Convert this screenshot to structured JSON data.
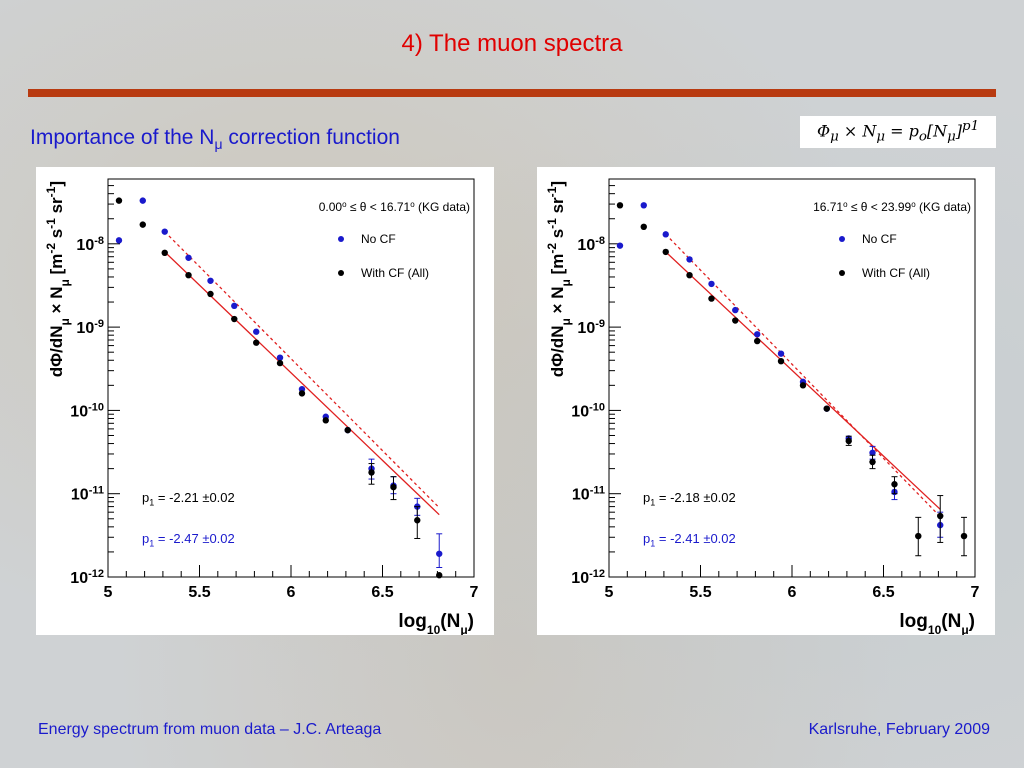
{
  "slide": {
    "title": "4) The muon spectra",
    "subtitle_pre": "Importance of the N",
    "subtitle_sub": "μ",
    "subtitle_post": " correction function",
    "formula_html": "Φ<sub>μ</sub> × N<sub>μ</sub> = p<sub>o</sub>[N<sub>μ</sub>]<sup>p1</sup>",
    "footer_left": "Energy spectrum from muon data – J.C. Arteaga",
    "footer_right": "Karlsruhe,  February 2009"
  },
  "colors": {
    "accent_red": "#e00000",
    "rule": "#b83a10",
    "text_blue": "#1a1acc",
    "no_cf": "#1a1acc",
    "with_cf": "#000000",
    "fit_line": "#e02020"
  },
  "chart_data": [
    {
      "type": "scatter",
      "yscale": "log",
      "xlim": [
        5,
        7
      ],
      "ylim": [
        1e-12,
        6e-08
      ],
      "xticks": [
        "5",
        "5.5",
        "6",
        "6.5",
        "7"
      ],
      "ytick_base": "10",
      "ytick_exps": [
        "-8",
        "-9",
        "-10",
        "-11",
        "-12"
      ],
      "xlabel_main": "log",
      "xlabel_sub": "10",
      "xlabel_arg": "(N",
      "xlabel_argsub": "μ",
      "xlabel_end": ")",
      "ylabel_html": "dΦ/dN<tspan baseline-shift='sub' font-size='12'>μ</tspan> × N<tspan baseline-shift='sub' font-size='12'>μ</tspan> [m<tspan baseline-shift='super' font-size='12'>-2</tspan> s<tspan baseline-shift='super' font-size='12'>-1</tspan> sr<tspan baseline-shift='super' font-size='12'>-1</tspan>]",
      "header_html": "0.00<tspan baseline-shift='super' font-size='8'>o</tspan> ≤ θ < 16.71<tspan baseline-shift='super' font-size='8'>o</tspan> (KG data)",
      "legend": [
        "No CF",
        "With CF (All)"
      ],
      "series": [
        {
          "name": "No CF",
          "points": [
            [
              5.06,
              1.1e-08
            ],
            [
              5.19,
              3.3e-08
            ],
            [
              5.31,
              1.4e-08
            ],
            [
              5.44,
              6.8e-09
            ],
            [
              5.56,
              3.6e-09
            ],
            [
              5.69,
              1.8e-09
            ],
            [
              5.81,
              8.8e-10
            ],
            [
              5.94,
              4.3e-10
            ],
            [
              6.06,
              1.8e-10
            ],
            [
              6.19,
              8.4e-11
            ],
            [
              6.31,
              5.8e-11
            ],
            [
              6.44,
              2e-11
            ],
            [
              6.56,
              1.25e-11
            ],
            [
              6.69,
              7e-12
            ],
            [
              6.81,
              1.9e-12
            ]
          ],
          "errors": [
            [
              6.44,
              [
                1.5e-11,
                2.6e-11
              ]
            ],
            [
              6.56,
              [
                1e-11,
                1.6e-11
              ]
            ],
            [
              6.69,
              [
                5.5e-12,
                8.8e-12
              ]
            ],
            [
              6.81,
              [
                1.3e-12,
                3.3e-12
              ]
            ]
          ]
        },
        {
          "name": "With CF (All)",
          "points": [
            [
              5.06,
              3.3e-08
            ],
            [
              5.19,
              1.7e-08
            ],
            [
              5.31,
              7.8e-09
            ],
            [
              5.44,
              4.2e-09
            ],
            [
              5.56,
              2.5e-09
            ],
            [
              5.69,
              1.25e-09
            ],
            [
              5.81,
              6.5e-10
            ],
            [
              5.94,
              3.7e-10
            ],
            [
              6.06,
              1.6e-10
            ],
            [
              6.19,
              7.6e-11
            ],
            [
              6.31,
              5.8e-11
            ],
            [
              6.44,
              1.8e-11
            ],
            [
              6.56,
              1.2e-11
            ],
            [
              6.69,
              4.8e-12
            ],
            [
              6.81,
              1.05e-12
            ]
          ],
          "errors": [
            [
              6.44,
              [
                1.3e-11,
                2.3e-11
              ]
            ],
            [
              6.56,
              [
                8.5e-12,
                1.6e-11
              ]
            ],
            [
              6.69,
              [
                2.9e-12,
                7e-12
              ]
            ]
          ]
        }
      ],
      "fits": [
        {
          "name": "No CF",
          "style": "dashed",
          "x": [
            5.31,
            6.81
          ],
          "y": [
            1.4e-08,
            6.8e-12
          ]
        },
        {
          "name": "With CF (All)",
          "style": "solid",
          "x": [
            5.31,
            6.81
          ],
          "y": [
            8e-09,
            5.6e-12
          ]
        }
      ],
      "fit_results": [
        {
          "pre": "p",
          "sub": "1",
          "value": " = -2.21 ",
          "pm": "±",
          "err": "0.02",
          "color": "black"
        },
        {
          "pre": "p",
          "sub": "1",
          "value": " = -2.47 ",
          "pm": "±",
          "err": "0.02",
          "color": "blue"
        }
      ]
    },
    {
      "type": "scatter",
      "yscale": "log",
      "xlim": [
        5,
        7
      ],
      "ylim": [
        1e-12,
        6e-08
      ],
      "xticks": [
        "5",
        "5.5",
        "6",
        "6.5",
        "7"
      ],
      "ytick_base": "10",
      "ytick_exps": [
        "-8",
        "-9",
        "-10",
        "-11",
        "-12"
      ],
      "xlabel_main": "log",
      "xlabel_sub": "10",
      "xlabel_arg": "(N",
      "xlabel_argsub": "μ",
      "xlabel_end": ")",
      "ylabel_html": "dΦ/dN<tspan baseline-shift='sub' font-size='12'>μ</tspan> × N<tspan baseline-shift='sub' font-size='12'>μ</tspan> [m<tspan baseline-shift='super' font-size='12'>-2</tspan> s<tspan baseline-shift='super' font-size='12'>-1</tspan> sr<tspan baseline-shift='super' font-size='12'>-1</tspan>]",
      "header_html": "16.71<tspan baseline-shift='super' font-size='8'>o</tspan> ≤ θ < 23.99<tspan baseline-shift='super' font-size='8'>o</tspan> (KG data)",
      "legend": [
        "No CF",
        "With CF (All)"
      ],
      "series": [
        {
          "name": "No CF",
          "points": [
            [
              5.06,
              9.5e-09
            ],
            [
              5.19,
              2.9e-08
            ],
            [
              5.31,
              1.3e-08
            ],
            [
              5.44,
              6.5e-09
            ],
            [
              5.56,
              3.3e-09
            ],
            [
              5.69,
              1.6e-09
            ],
            [
              5.81,
              8.2e-10
            ],
            [
              5.94,
              4.8e-10
            ],
            [
              6.06,
              2.2e-10
            ],
            [
              6.19,
              1.05e-10
            ],
            [
              6.31,
              4.6e-11
            ],
            [
              6.44,
              3.1e-11
            ],
            [
              6.56,
              1.05e-11
            ],
            [
              6.81,
              4.2e-12
            ]
          ],
          "errors": [
            [
              6.44,
              [
                2.6e-11,
                3.7e-11
              ]
            ],
            [
              6.56,
              [
                8.5e-12,
                1.3e-11
              ]
            ],
            [
              6.81,
              [
                3e-12,
                6e-12
              ]
            ]
          ]
        },
        {
          "name": "With CF (All)",
          "points": [
            [
              5.06,
              2.9e-08
            ],
            [
              5.19,
              1.6e-08
            ],
            [
              5.31,
              8e-09
            ],
            [
              5.44,
              4.2e-09
            ],
            [
              5.56,
              2.2e-09
            ],
            [
              5.69,
              1.2e-09
            ],
            [
              5.81,
              6.8e-10
            ],
            [
              5.94,
              3.9e-10
            ],
            [
              6.06,
              2e-10
            ],
            [
              6.19,
              1.05e-10
            ],
            [
              6.31,
              4.3e-11
            ],
            [
              6.44,
              2.4e-11
            ],
            [
              6.56,
              1.3e-11
            ],
            [
              6.69,
              3.1e-12
            ],
            [
              6.81,
              5.4e-12
            ],
            [
              6.94,
              3.1e-12
            ]
          ],
          "errors": [
            [
              6.31,
              [
                3.8e-11,
                4.9e-11
              ]
            ],
            [
              6.44,
              [
                2e-11,
                2.9e-11
              ]
            ],
            [
              6.56,
              [
                1e-11,
                1.6e-11
              ]
            ],
            [
              6.69,
              [
                1.8e-12,
                5.2e-12
              ]
            ],
            [
              6.81,
              [
                2.6e-12,
                9.5e-12
              ]
            ],
            [
              6.94,
              [
                1.8e-12,
                5.2e-12
              ]
            ]
          ]
        }
      ],
      "fits": [
        {
          "name": "No CF",
          "style": "dashed",
          "x": [
            5.31,
            6.81
          ],
          "y": [
            1.3e-08,
            5.3e-12
          ]
        },
        {
          "name": "With CF (All)",
          "style": "solid",
          "x": [
            5.31,
            6.81
          ],
          "y": [
            8e-09,
            6.5e-12
          ]
        }
      ],
      "fit_results": [
        {
          "pre": "p",
          "sub": "1",
          "value": " = -2.18 ",
          "pm": "±",
          "err": "0.02",
          "color": "black"
        },
        {
          "pre": "p",
          "sub": "1",
          "value": " = -2.41 ",
          "pm": "±",
          "err": "0.02",
          "color": "blue"
        }
      ]
    }
  ]
}
